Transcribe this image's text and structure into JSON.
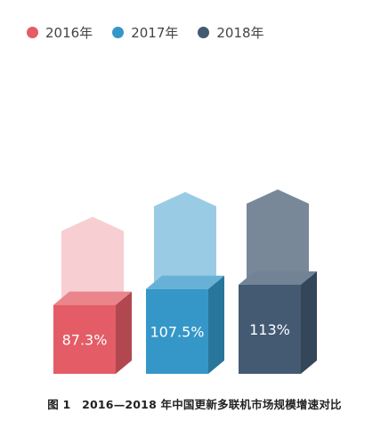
{
  "chart_data": {
    "type": "bar",
    "categories": [
      "2016年",
      "2017年",
      "2018年"
    ],
    "values": [
      87.3,
      107.5,
      113
    ],
    "labels": [
      "87.3%",
      "107.5%",
      "113%"
    ],
    "series": [
      {
        "name": "2016年",
        "value": 87.3,
        "color": "#e35c66"
      },
      {
        "name": "2017年",
        "value": 107.5,
        "color": "#3597c8"
      },
      {
        "name": "2018年",
        "value": 113,
        "color": "#435a72"
      }
    ],
    "legend_position": "top-left",
    "grid": false,
    "caption": "图 1　2016—2018 年中国更新多联机市场规模增速对比"
  }
}
